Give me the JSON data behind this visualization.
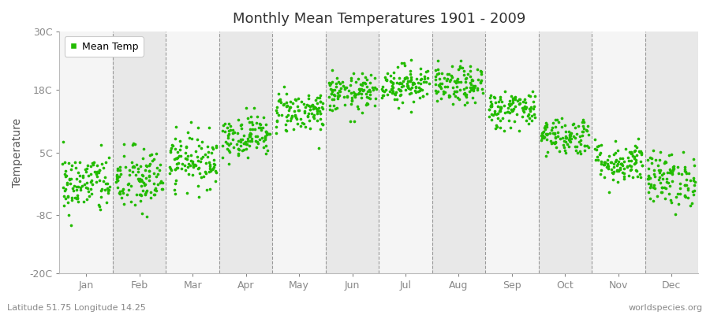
{
  "title": "Monthly Mean Temperatures 1901 - 2009",
  "ylabel": "Temperature",
  "ytick_labels": [
    "-20C",
    "-8C",
    "5C",
    "18C",
    "30C"
  ],
  "ytick_values": [
    -20,
    -8,
    5,
    18,
    30
  ],
  "ylim": [
    -20,
    30
  ],
  "month_labels": [
    "Jan",
    "Feb",
    "Mar",
    "Apr",
    "May",
    "Jun",
    "Jul",
    "Aug",
    "Sep",
    "Oct",
    "Nov",
    "Dec"
  ],
  "dot_color": "#22bb00",
  "bg_color": "#ffffff",
  "band_light": "#f5f5f5",
  "band_dark": "#e8e8e8",
  "legend_label": "Mean Temp",
  "subtitle_left": "Latitude 51.75 Longitude 14.25",
  "subtitle_right": "worldspecies.org",
  "n_years": 109,
  "monthly_means": [
    -1.5,
    -0.8,
    3.5,
    8.5,
    13.5,
    17.2,
    19.2,
    18.8,
    14.0,
    8.5,
    3.0,
    -0.5
  ],
  "monthly_stds": [
    3.2,
    3.5,
    2.8,
    2.2,
    2.2,
    2.0,
    2.0,
    2.0,
    2.0,
    2.0,
    2.2,
    2.8
  ],
  "dashed_line_color": "#999999",
  "xlim_left": 0.0,
  "xlim_right": 12.0
}
